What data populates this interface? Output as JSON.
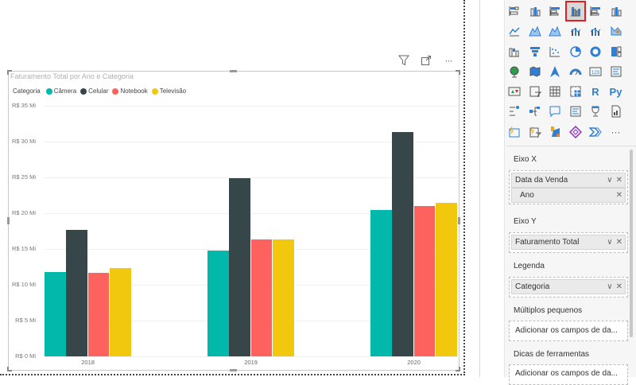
{
  "visual": {
    "title": "Faturamento Total por Ano e Categoria",
    "header_icons": [
      "filter-icon",
      "focus-mode-icon",
      "more-options-icon"
    ],
    "more_label": "···"
  },
  "legend": {
    "title": "Categoria",
    "items": [
      {
        "label": "Câmera",
        "color": "#01B8AA"
      },
      {
        "label": "Celular",
        "color": "#374649"
      },
      {
        "label": "Notebook",
        "color": "#FD625E"
      },
      {
        "label": "Televisão",
        "color": "#F2C80F"
      }
    ]
  },
  "chart_data": {
    "type": "bar",
    "title": "Faturamento Total por Ano e Categoria",
    "xlabel": "",
    "ylabel": "",
    "categories": [
      "2018",
      "2019",
      "2020"
    ],
    "series": [
      {
        "name": "Câmera",
        "color": "#01B8AA",
        "values": [
          11.8,
          14.8,
          20.4
        ]
      },
      {
        "name": "Celular",
        "color": "#374649",
        "values": [
          17.7,
          24.9,
          31.3
        ]
      },
      {
        "name": "Notebook",
        "color": "#FD625E",
        "values": [
          11.7,
          16.3,
          21.0
        ]
      },
      {
        "name": "Televisão",
        "color": "#F2C80F",
        "values": [
          12.3,
          16.3,
          21.4
        ]
      }
    ],
    "ylim": [
      0,
      35
    ],
    "yticks": [
      "R$ 0 Mi",
      "R$ 5 Mi",
      "R$ 10 Mi",
      "R$ 15 Mi",
      "R$ 20 Mi",
      "R$ 25 Mi",
      "R$ 30 Mi",
      "R$ 35 Mi"
    ],
    "grid": true,
    "legend_position": "top-left",
    "unit": "R$ Mi"
  },
  "pane": {
    "viz_icons": [
      "stacked-bar-icon",
      "stacked-column-icon",
      "clustered-bar-icon",
      "clustered-column-icon",
      "100-stacked-bar-icon",
      "100-stacked-column-icon",
      "line-chart-icon",
      "area-chart-icon",
      "stacked-area-icon",
      "line-clustered-column-icon",
      "line-stacked-column-icon",
      "ribbon-chart-icon",
      "waterfall-icon",
      "funnel-icon",
      "scatter-icon",
      "pie-chart-icon",
      "donut-chart-icon",
      "treemap-icon",
      "map-icon",
      "filled-map-icon",
      "azure-map-icon",
      "gauge-icon",
      "card-icon",
      "multi-row-card-icon",
      "kpi-icon",
      "slicer-icon",
      "table-icon",
      "matrix-icon",
      "r-visual-icon",
      "python-visual-icon",
      "key-influencers-icon",
      "decomposition-tree-icon",
      "qna-icon",
      "smart-narrative-icon",
      "goals-icon",
      "paginated-report-icon",
      "power-apps-card-icon",
      "power-apps-slicer-icon",
      "power-automate-icon",
      "power-apps-icon",
      "power-automate-flow-icon",
      "more-visuals-icon"
    ],
    "selected_index": 3,
    "r_label": "R",
    "py_label": "Py",
    "more_label": "···",
    "wells": {
      "x_axis": {
        "label": "Eixo X",
        "field": "Data da Venda",
        "subfield": "Ano"
      },
      "y_axis": {
        "label": "Eixo Y",
        "field": "Faturamento Total"
      },
      "legend": {
        "label": "Legenda",
        "field": "Categoria"
      },
      "small_multiples": {
        "label": "Múltiplos pequenos",
        "placeholder": "Adicionar os campos de da..."
      },
      "tooltips": {
        "label": "Dicas de ferramentas",
        "placeholder": "Adicionar os campos de da..."
      }
    },
    "chevron": "∨",
    "remove": "✕"
  }
}
